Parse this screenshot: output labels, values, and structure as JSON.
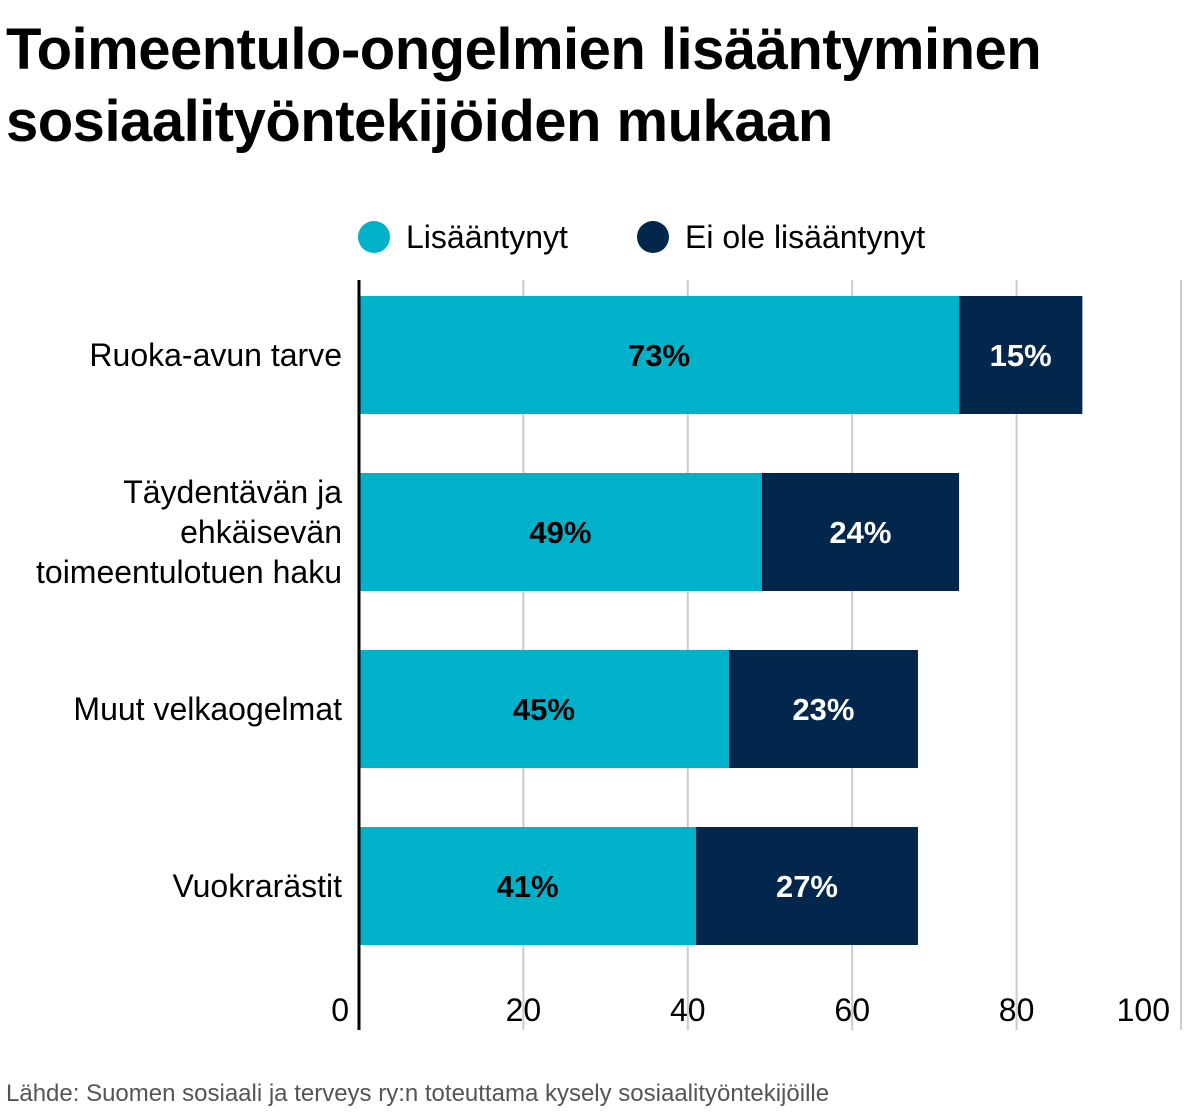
{
  "title_lines": [
    "Toimeentulo-ongelmien lisääntyminen",
    "sosiaalityöntekijöiden mukaan"
  ],
  "source": "Lähde: Suomen sosiaali ja terveys ry:n toteuttama kysely sosiaalityöntekijöille",
  "colors": {
    "lisaantynyt": "#00b2c9",
    "ei_lisaantynyt": "#03264d",
    "grid": "#cccccc",
    "axis": "#000000"
  },
  "chart_data": {
    "type": "bar",
    "orientation": "horizontal",
    "stacked": true,
    "categories": [
      [
        "Ruoka-avun tarve"
      ],
      [
        "Täydentävän ja",
        "ehkäisevän",
        "toimeentulotuen haku"
      ],
      [
        "Muut velkaogelmat"
      ],
      [
        "Vuokrarästit"
      ]
    ],
    "series": [
      {
        "name": "Lisääntynyt",
        "values": [
          73,
          49,
          45,
          41
        ],
        "labels": [
          "73%",
          "49%",
          "45%",
          "41%"
        ]
      },
      {
        "name": "Ei ole lisääntynyt",
        "values": [
          15,
          24,
          23,
          27
        ],
        "labels": [
          "15%",
          "24%",
          "23%",
          "27%"
        ]
      }
    ],
    "legend_labels": [
      "Lisääntynyt",
      "Ei ole lisääntynyt"
    ],
    "xlim": [
      0,
      100
    ],
    "xticks": [
      0,
      20,
      40,
      60,
      80,
      100
    ],
    "grid": true,
    "legend_position": "top"
  }
}
